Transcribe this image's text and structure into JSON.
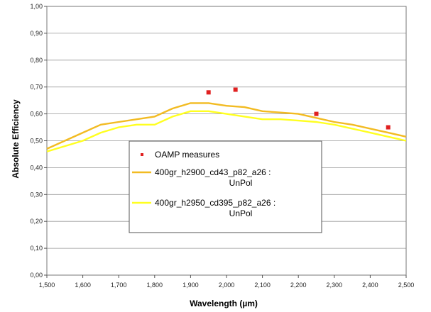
{
  "chart_data": {
    "type": "line",
    "title": "",
    "xlabel": "Wavelength (µm)",
    "ylabel": "Absolute Efficiency",
    "xlim": [
      1.5,
      2.5
    ],
    "ylim": [
      0.0,
      1.0
    ],
    "x_ticks": [
      "1,500",
      "1,600",
      "1,700",
      "1,800",
      "1,900",
      "2,000",
      "2,100",
      "2,200",
      "2,300",
      "2,400",
      "2,500"
    ],
    "y_ticks": [
      "0,00",
      "0,10",
      "0,20",
      "0,30",
      "0,40",
      "0,50",
      "0,60",
      "0,70",
      "0,80",
      "0,90",
      "1,00"
    ],
    "grid": "horizontal",
    "legend_position": "center-left",
    "series": [
      {
        "name": "OAMP measures",
        "kind": "scatter",
        "color": "#e02020",
        "x": [
          1.95,
          2.025,
          2.25,
          2.45
        ],
        "y": [
          0.68,
          0.69,
          0.6,
          0.55
        ]
      },
      {
        "name": "400gr_h2900_cd43_p82_a26 : UnPol",
        "kind": "line",
        "color": "#f2bb22",
        "x": [
          1.5,
          1.55,
          1.6,
          1.65,
          1.7,
          1.75,
          1.8,
          1.85,
          1.9,
          1.95,
          2.0,
          2.05,
          2.1,
          2.15,
          2.2,
          2.25,
          2.3,
          2.35,
          2.4,
          2.45,
          2.5
        ],
        "y": [
          0.47,
          0.5,
          0.53,
          0.56,
          0.57,
          0.58,
          0.59,
          0.62,
          0.64,
          0.64,
          0.63,
          0.625,
          0.61,
          0.605,
          0.6,
          0.585,
          0.57,
          0.56,
          0.545,
          0.53,
          0.515
        ]
      },
      {
        "name": "400gr_h2950_cd395_p82_a26 : UnPol",
        "kind": "line",
        "color": "#ffff20",
        "x": [
          1.5,
          1.55,
          1.6,
          1.65,
          1.7,
          1.75,
          1.8,
          1.85,
          1.9,
          1.95,
          2.0,
          2.05,
          2.1,
          2.15,
          2.2,
          2.25,
          2.3,
          2.35,
          2.4,
          2.45,
          2.5
        ],
        "y": [
          0.46,
          0.48,
          0.5,
          0.53,
          0.55,
          0.56,
          0.56,
          0.59,
          0.61,
          0.61,
          0.6,
          0.59,
          0.58,
          0.58,
          0.575,
          0.57,
          0.56,
          0.545,
          0.53,
          0.515,
          0.5
        ]
      }
    ],
    "legend_labels": [
      [
        "OAMP measures"
      ],
      [
        "400gr_h2900_cd43_p82_a26 :",
        "UnPol"
      ],
      [
        "400gr_h2950_cd395_p82_a26 :",
        "UnPol"
      ]
    ]
  }
}
